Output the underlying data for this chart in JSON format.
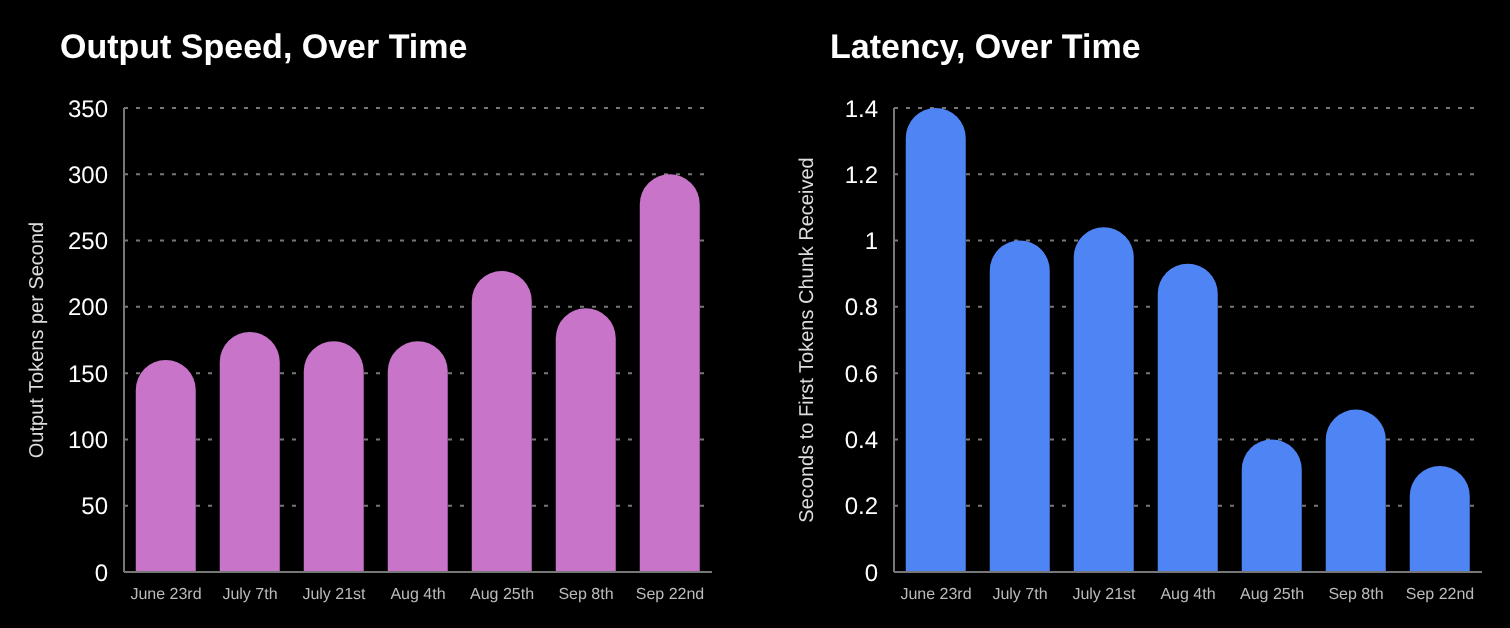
{
  "chart_data": [
    {
      "type": "bar",
      "title": "Output Speed, Over Time",
      "ylabel": "Output Tokens per Second",
      "categories": [
        "June 23rd",
        "July 7th",
        "July 21st",
        "Aug 4th",
        "Aug 25th",
        "Sep 8th",
        "Sep 22nd"
      ],
      "values": [
        160,
        181,
        174,
        174,
        227,
        199,
        300
      ],
      "color": "#c774c9",
      "ylim": [
        0,
        350
      ],
      "yticks": [
        0,
        50,
        100,
        150,
        200,
        250,
        300,
        350
      ],
      "grid": "y"
    },
    {
      "type": "bar",
      "title": "Latency, Over Time",
      "ylabel": "Seconds to First Tokens Chunk Received",
      "categories": [
        "June 23rd",
        "July 7th",
        "July 21st",
        "Aug 4th",
        "Aug 25th",
        "Sep 8th",
        "Sep 22nd"
      ],
      "values": [
        1.4,
        1.0,
        1.04,
        0.93,
        0.4,
        0.49,
        0.32
      ],
      "color": "#4f84f5",
      "ylim": [
        0,
        1.4
      ],
      "yticks": [
        0,
        0.2,
        0.4,
        0.6,
        0.8,
        1,
        1.2,
        1.4
      ],
      "grid": "y"
    }
  ]
}
